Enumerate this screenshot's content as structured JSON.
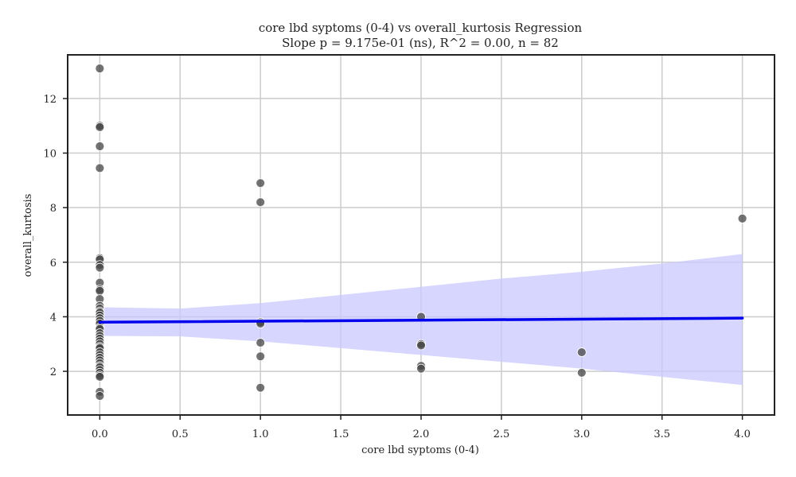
{
  "chart_data": {
    "type": "scatter",
    "title": "core lbd syptoms (0-4) vs overall_kurtosis Regression",
    "subtitle": "Slope p = 9.175e-01 (ns), R^2 = 0.00, n = 82",
    "xlabel": "core lbd syptoms (0-4)",
    "ylabel": "overall_kurtosis",
    "xlim": [
      -0.2,
      4.2
    ],
    "ylim": [
      0.4,
      13.6
    ],
    "x_ticks": [
      "0.0",
      "0.5",
      "1.0",
      "1.5",
      "2.0",
      "2.5",
      "3.0",
      "3.5",
      "4.0"
    ],
    "y_ticks": [
      "2",
      "4",
      "6",
      "8",
      "10",
      "12"
    ],
    "grid": true,
    "colors": {
      "points": "#444444",
      "regression_line": "#0000ee",
      "confidence_band": "#c8c8ff",
      "grid": "#cccccc",
      "axes": "#222222"
    },
    "points": [
      {
        "x": 0,
        "y": 13.1
      },
      {
        "x": 0,
        "y": 11.0
      },
      {
        "x": 0,
        "y": 10.95
      },
      {
        "x": 0,
        "y": 10.25
      },
      {
        "x": 0,
        "y": 9.45
      },
      {
        "x": 0,
        "y": 6.15
      },
      {
        "x": 0,
        "y": 6.1
      },
      {
        "x": 0,
        "y": 5.9
      },
      {
        "x": 0,
        "y": 5.8
      },
      {
        "x": 0,
        "y": 5.25
      },
      {
        "x": 0,
        "y": 5.0
      },
      {
        "x": 0,
        "y": 4.95
      },
      {
        "x": 0,
        "y": 4.65
      },
      {
        "x": 0,
        "y": 4.4
      },
      {
        "x": 0,
        "y": 4.3
      },
      {
        "x": 0,
        "y": 4.2
      },
      {
        "x": 0,
        "y": 4.15
      },
      {
        "x": 0,
        "y": 4.05
      },
      {
        "x": 0,
        "y": 3.95
      },
      {
        "x": 0,
        "y": 3.85
      },
      {
        "x": 0,
        "y": 3.75
      },
      {
        "x": 0,
        "y": 3.6
      },
      {
        "x": 0,
        "y": 3.55
      },
      {
        "x": 0,
        "y": 3.4
      },
      {
        "x": 0,
        "y": 3.3
      },
      {
        "x": 0,
        "y": 3.2
      },
      {
        "x": 0,
        "y": 3.1
      },
      {
        "x": 0,
        "y": 3.0
      },
      {
        "x": 0,
        "y": 2.9
      },
      {
        "x": 0,
        "y": 2.85
      },
      {
        "x": 0,
        "y": 2.7
      },
      {
        "x": 0,
        "y": 2.6
      },
      {
        "x": 0,
        "y": 2.5
      },
      {
        "x": 0,
        "y": 2.4
      },
      {
        "x": 0,
        "y": 2.3
      },
      {
        "x": 0,
        "y": 2.2
      },
      {
        "x": 0,
        "y": 2.15
      },
      {
        "x": 0,
        "y": 2.05
      },
      {
        "x": 0,
        "y": 1.95
      },
      {
        "x": 0,
        "y": 1.85
      },
      {
        "x": 0,
        "y": 1.8
      },
      {
        "x": 0,
        "y": 1.25
      },
      {
        "x": 0,
        "y": 1.1
      },
      {
        "x": 1,
        "y": 8.9
      },
      {
        "x": 1,
        "y": 8.2
      },
      {
        "x": 1,
        "y": 3.8
      },
      {
        "x": 1,
        "y": 3.75
      },
      {
        "x": 1,
        "y": 3.05
      },
      {
        "x": 1,
        "y": 2.55
      },
      {
        "x": 1,
        "y": 1.4
      },
      {
        "x": 2,
        "y": 4.0
      },
      {
        "x": 2,
        "y": 3.0
      },
      {
        "x": 2,
        "y": 2.95
      },
      {
        "x": 2,
        "y": 2.2
      },
      {
        "x": 2,
        "y": 2.1
      },
      {
        "x": 3,
        "y": 2.7
      },
      {
        "x": 3,
        "y": 1.95
      },
      {
        "x": 4,
        "y": 7.6
      }
    ],
    "regression": {
      "x": [
        0,
        4
      ],
      "y": [
        3.8,
        3.95
      ]
    },
    "confidence_band": {
      "x": [
        0,
        0.5,
        1,
        1.5,
        2,
        2.5,
        3,
        3.5,
        4
      ],
      "lower": [
        3.3,
        3.28,
        3.1,
        2.85,
        2.6,
        2.35,
        2.1,
        1.8,
        1.5
      ],
      "upper": [
        4.35,
        4.3,
        4.5,
        4.8,
        5.1,
        5.4,
        5.65,
        5.95,
        6.3
      ]
    }
  }
}
